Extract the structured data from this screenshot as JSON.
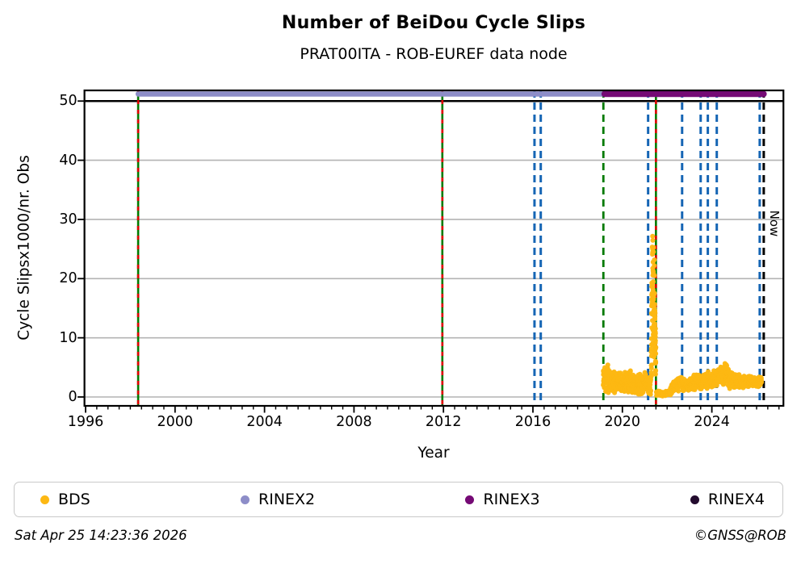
{
  "header": {
    "title": "Number of BeiDou Cycle Slips",
    "subtitle": "PRAT00ITA - ROB-EUREF data node"
  },
  "footer": {
    "timestamp": "Sat Apr 25 14:23:36 2026",
    "copyright": "©GNSS@ROB"
  },
  "legend": {
    "items": [
      {
        "label": "BDS",
        "color": "#fdb813"
      },
      {
        "label": "RINEX2",
        "color": "#8d8dc8"
      },
      {
        "label": "RINEX3",
        "color": "#750a75"
      },
      {
        "label": "RINEX4",
        "color": "#230b2e"
      }
    ]
  },
  "chart_data": {
    "type": "scatter",
    "title": "Number of BeiDou Cycle Slips",
    "subtitle": "PRAT00ITA - ROB-EUREF data node",
    "xlabel": "Year",
    "ylabel": "Cycle Slipsx1000/nr. Obs",
    "now_label": "Now",
    "xlim": [
      1995.95,
      2027.2
    ],
    "ylim": [
      -1.5,
      51.8
    ],
    "axes": {
      "x": {
        "ticks": [
          1996,
          2000,
          2004,
          2008,
          2012,
          2016,
          2020,
          2024
        ],
        "minor_step": 0.5
      },
      "y": {
        "ticks": [
          0,
          10,
          20,
          30,
          40,
          50
        ]
      }
    },
    "grid": {
      "color": "#b3b3b3",
      "y_values": [
        0,
        10,
        20,
        30,
        40
      ],
      "y50_line": {
        "value": 50,
        "color": "#000000"
      }
    },
    "bars": [
      {
        "name": "RINEX2",
        "start": 1998.35,
        "end": 2019.2,
        "y": 51.2,
        "color": "#8d8dc8",
        "thickness": 6.5
      },
      {
        "name": "RINEX3",
        "start": 2019.2,
        "end": 2026.32,
        "y": 51.2,
        "color": "#750a75",
        "thickness": 7.5
      }
    ],
    "line_styles": {
      "event": {
        "solid": "#007a00",
        "dash_overlay": "#e00000"
      },
      "green_dashed": {
        "color": "#007a00"
      },
      "blue_dashed": {
        "color": "#1565b4"
      },
      "now": {
        "color": "#000000"
      }
    },
    "vlines": [
      {
        "x": 1998.35,
        "style": "event"
      },
      {
        "x": 2011.95,
        "style": "event"
      },
      {
        "x": 2016.07,
        "style": "blue_dashed"
      },
      {
        "x": 2016.35,
        "style": "blue_dashed"
      },
      {
        "x": 2019.15,
        "style": "green_dashed"
      },
      {
        "x": 2021.15,
        "style": "blue_dashed"
      },
      {
        "x": 2021.5,
        "style": "event"
      },
      {
        "x": 2022.67,
        "style": "blue_dashed"
      },
      {
        "x": 2023.5,
        "style": "blue_dashed"
      },
      {
        "x": 2023.82,
        "style": "blue_dashed"
      },
      {
        "x": 2024.22,
        "style": "blue_dashed"
      },
      {
        "x": 2026.14,
        "style": "blue_dashed"
      },
      {
        "x": 2026.32,
        "style": "now",
        "label": "Now"
      }
    ],
    "bds": {
      "name": "BDS",
      "color": "#fdb813",
      "marker_radius": 3,
      "seed": 20260425,
      "x_range": [
        2019.15,
        2026.32
      ],
      "peak": {
        "year": 2021.38,
        "value": 29
      },
      "band_segments": [
        {
          "dx": 0.012,
          "points_per_step": 2.6,
          "nodes": [
            [
              2019.15,
              0.5,
              4.6
            ],
            [
              2019.3,
              0.7,
              6.0
            ],
            [
              2019.45,
              0.5,
              5.2
            ],
            [
              2019.7,
              0.3,
              4.4
            ],
            [
              2020.0,
              0.4,
              4.3
            ],
            [
              2020.35,
              0.25,
              4.6
            ],
            [
              2020.65,
              0.2,
              3.8
            ],
            [
              2020.95,
              0.3,
              4.3
            ],
            [
              2021.28,
              0.3,
              4.0
            ]
          ]
        },
        {
          "dx": 0.006,
          "points_per_step": 3.2,
          "nodes": [
            [
              2021.29,
              0.5,
              12.0
            ],
            [
              2021.33,
              3.5,
              28.8
            ],
            [
              2021.38,
              5.0,
              29.0
            ],
            [
              2021.42,
              5.0,
              27.0
            ],
            [
              2021.46,
              2.0,
              17.0
            ],
            [
              2021.5,
              0.4,
              9.0
            ]
          ]
        },
        {
          "dx": 0.012,
          "points_per_step": 2.0,
          "nodes": [
            [
              2021.52,
              0.1,
              1.3
            ],
            [
              2021.75,
              0.1,
              0.9
            ],
            [
              2022.0,
              0.15,
              1.1
            ],
            [
              2022.15,
              0.3,
              1.6
            ]
          ]
        },
        {
          "dx": 0.012,
          "points_per_step": 2.4,
          "nodes": [
            [
              2022.2,
              0.5,
              2.4
            ],
            [
              2022.4,
              0.8,
              3.4
            ],
            [
              2022.6,
              1.0,
              3.6
            ],
            [
              2022.85,
              0.8,
              3.0
            ],
            [
              2023.1,
              0.9,
              3.6
            ],
            [
              2023.3,
              1.1,
              4.2
            ],
            [
              2023.55,
              1.0,
              3.8
            ],
            [
              2023.8,
              1.2,
              4.3
            ],
            [
              2024.1,
              1.4,
              4.6
            ],
            [
              2024.35,
              1.5,
              5.2
            ],
            [
              2024.6,
              1.6,
              5.9
            ],
            [
              2024.8,
              1.4,
              4.8
            ],
            [
              2025.1,
              1.3,
              4.0
            ],
            [
              2025.4,
              1.4,
              3.8
            ],
            [
              2025.7,
              1.5,
              3.6
            ],
            [
              2026.0,
              1.5,
              3.4
            ],
            [
              2026.22,
              1.7,
              3.6
            ]
          ]
        }
      ]
    }
  }
}
